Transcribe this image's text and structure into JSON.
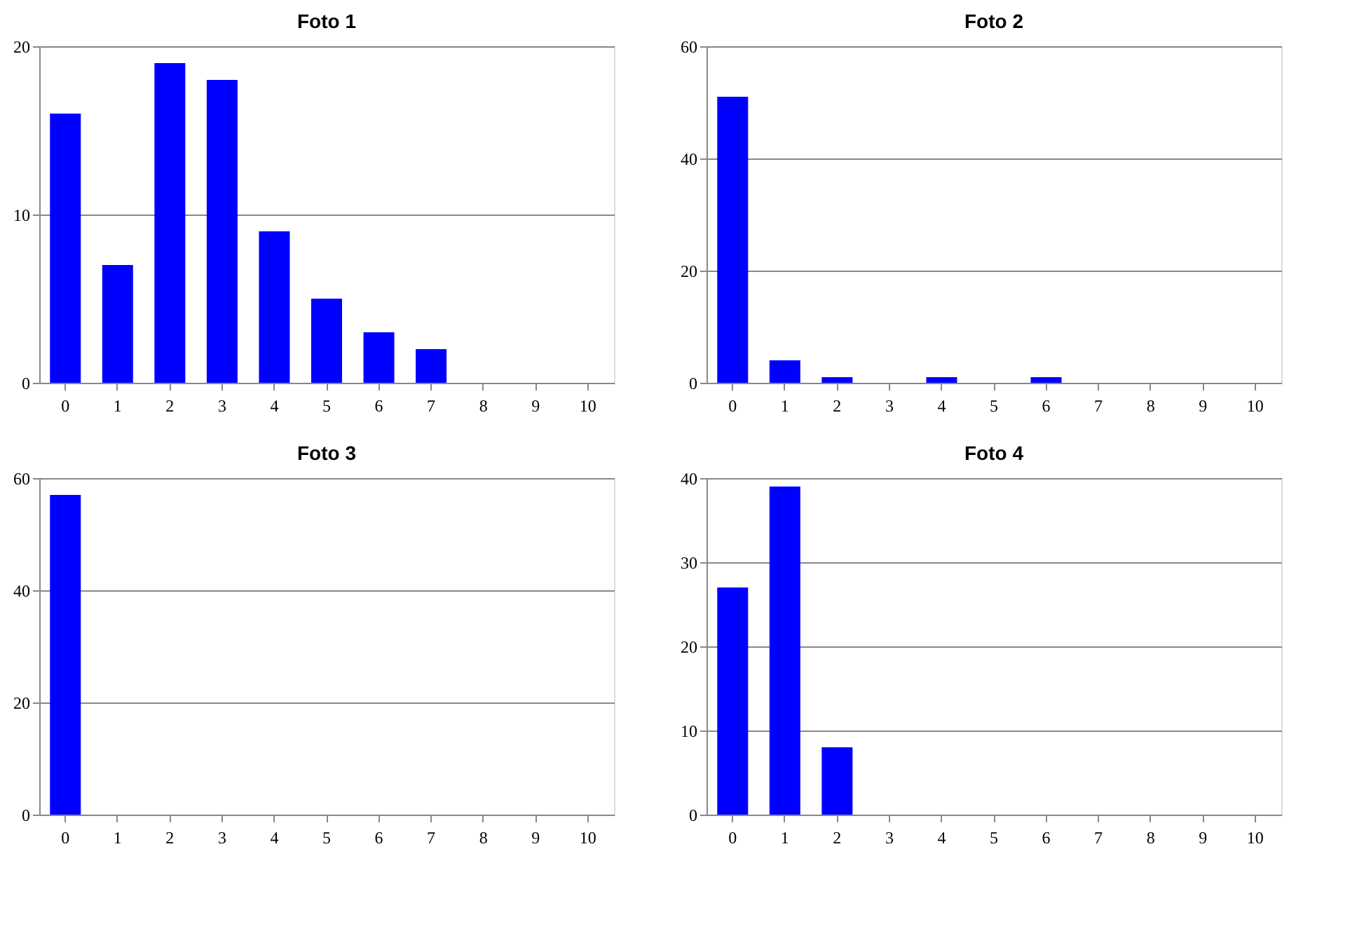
{
  "chart_data": [
    {
      "type": "bar",
      "title": "Foto 1",
      "categories": [
        "0",
        "1",
        "2",
        "3",
        "4",
        "5",
        "6",
        "7",
        "8",
        "9",
        "10"
      ],
      "values": [
        16,
        7,
        19,
        18,
        9,
        5,
        3,
        2,
        0,
        0,
        0
      ],
      "color": "#0000ff",
      "ylim": [
        0,
        20
      ],
      "yticks": [
        0,
        10,
        20
      ],
      "grid": "y"
    },
    {
      "type": "bar",
      "title": "Foto 2",
      "categories": [
        "0",
        "1",
        "2",
        "3",
        "4",
        "5",
        "6",
        "7",
        "8",
        "9",
        "10"
      ],
      "values": [
        51,
        4,
        1,
        0,
        1,
        0,
        1,
        0,
        0,
        0,
        0
      ],
      "color": "#0000ff",
      "ylim": [
        0,
        60
      ],
      "yticks": [
        0,
        20,
        40,
        60
      ],
      "grid": "y"
    },
    {
      "type": "bar",
      "title": "Foto 3",
      "categories": [
        "0",
        "1",
        "2",
        "3",
        "4",
        "5",
        "6",
        "7",
        "8",
        "9",
        "10"
      ],
      "values": [
        57,
        0,
        0,
        0,
        0,
        0,
        0,
        0,
        0,
        0,
        0
      ],
      "color": "#0000ff",
      "ylim": [
        0,
        60
      ],
      "yticks": [
        0,
        20,
        40,
        60
      ],
      "grid": "y"
    },
    {
      "type": "bar",
      "title": "Foto 4",
      "categories": [
        "0",
        "1",
        "2",
        "3",
        "4",
        "5",
        "6",
        "7",
        "8",
        "9",
        "10"
      ],
      "values": [
        27,
        39,
        8,
        0,
        0,
        0,
        0,
        0,
        0,
        0,
        0
      ],
      "color": "#0000ff",
      "ylim": [
        0,
        40
      ],
      "yticks": [
        0,
        10,
        20,
        30,
        40
      ],
      "grid": "y"
    }
  ]
}
